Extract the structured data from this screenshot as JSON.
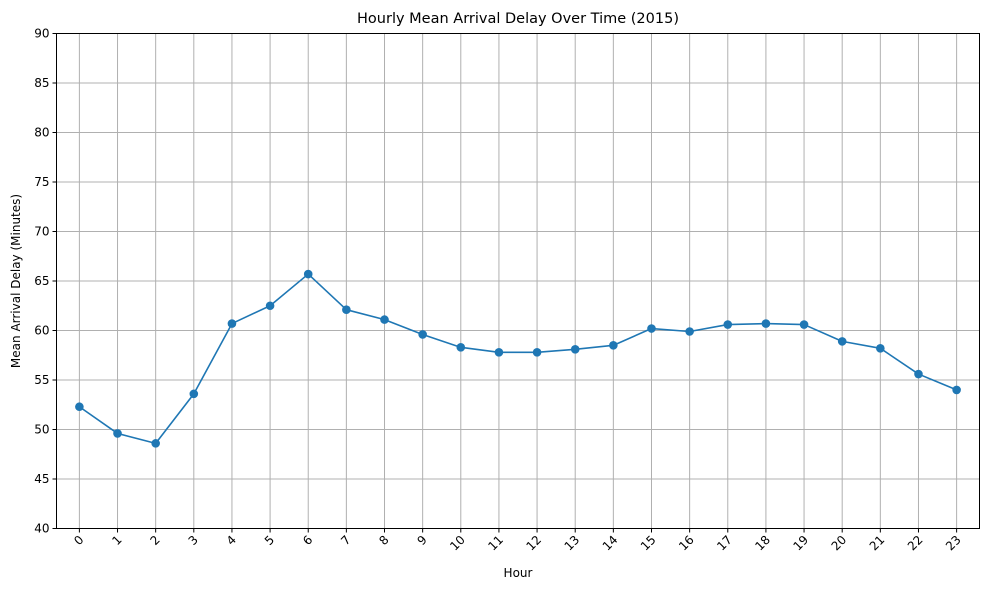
{
  "chart_data": {
    "type": "line",
    "title": "Hourly Mean Arrival Delay Over Time (2015)",
    "xlabel": "Hour",
    "ylabel": "Mean Arrival Delay (Minutes)",
    "x": [
      0,
      1,
      2,
      3,
      4,
      5,
      6,
      7,
      8,
      9,
      10,
      11,
      12,
      13,
      14,
      15,
      16,
      17,
      18,
      19,
      20,
      21,
      22,
      23
    ],
    "x_tick_labels": [
      "0",
      "1",
      "2",
      "3",
      "4",
      "5",
      "6",
      "7",
      "8",
      "9",
      "10",
      "11",
      "12",
      "13",
      "14",
      "15",
      "16",
      "17",
      "18",
      "19",
      "20",
      "21",
      "22",
      "23"
    ],
    "series": [
      {
        "values": [
          52.3,
          49.6,
          48.6,
          53.6,
          60.7,
          62.5,
          65.7,
          62.1,
          61.1,
          59.6,
          58.3,
          57.8,
          57.8,
          58.1,
          58.5,
          60.2,
          59.9,
          60.6,
          60.7,
          60.6,
          58.9,
          58.2,
          55.6,
          54.0
        ],
        "color": "#1f77b4",
        "marker": "circle"
      }
    ],
    "ylim": [
      40,
      90
    ],
    "y_ticks": [
      40,
      45,
      50,
      55,
      60,
      65,
      70,
      75,
      80,
      85,
      90
    ],
    "x_tick_rotation_deg": 45,
    "grid": true,
    "legend": "none"
  }
}
